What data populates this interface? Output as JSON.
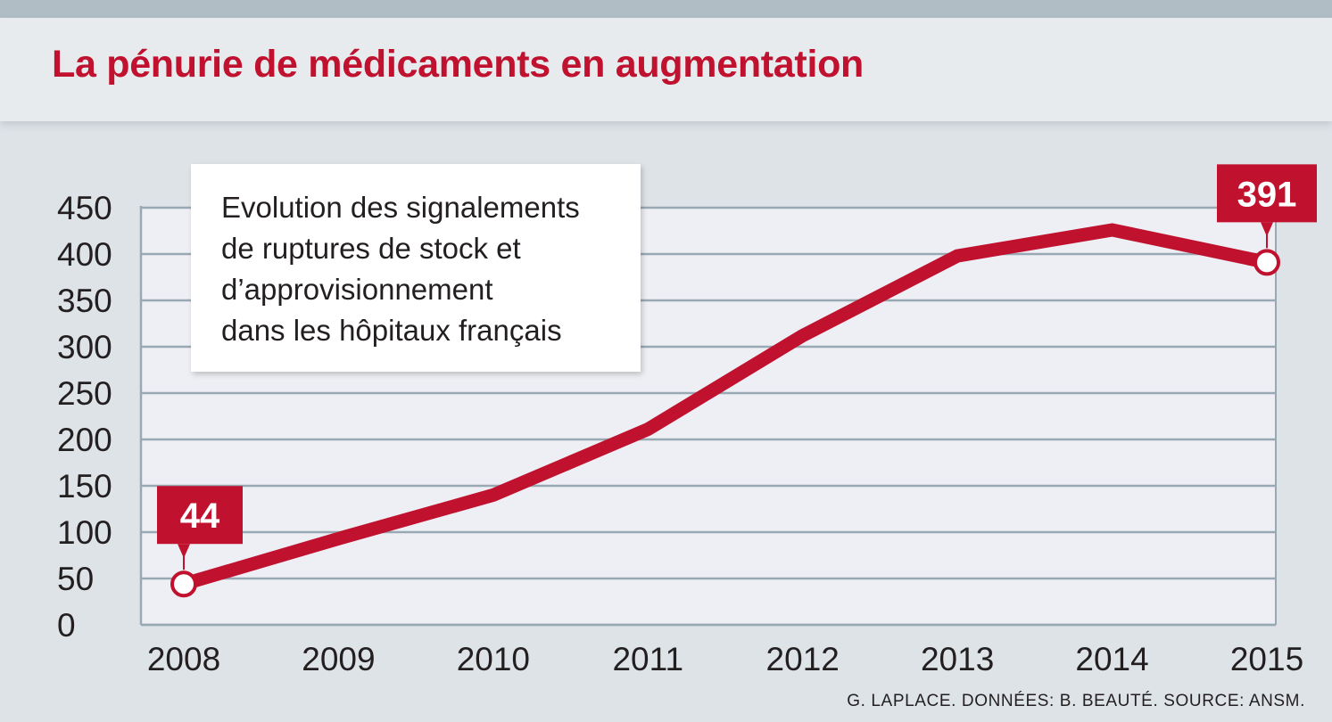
{
  "title": "La pénurie de médicaments en augmentation",
  "legend_lines": [
    "Evolution des signalements",
    "de ruptures de stock et",
    "d’approvisionnement",
    "dans les hôpitaux français"
  ],
  "source": "G. LAPLACE. DONNÉES: B. BEAUTÉ. SOURCE: ANSM.",
  "colors": {
    "accent": "#c0122f",
    "plot_bg": "#eeeff4",
    "grid": "#99a9b3"
  },
  "chart_data": {
    "type": "line",
    "title": "La pénurie de médicaments en augmentation",
    "subtitle": "Evolution des signalements de ruptures de stock et d’approvisionnement dans les hôpitaux français",
    "categories": [
      "2008",
      "2009",
      "2010",
      "2011",
      "2012",
      "2013",
      "2014",
      "2015"
    ],
    "series": [
      {
        "name": "Signalements",
        "values": [
          44,
          93,
          140,
          211,
          312,
          398,
          426,
          391
        ]
      }
    ],
    "ylim": [
      0,
      450
    ],
    "yticks": [
      0,
      50,
      100,
      150,
      200,
      250,
      300,
      350,
      400,
      450
    ],
    "grid": true,
    "xlabel": "",
    "ylabel": "",
    "annotations": [
      {
        "category": "2008",
        "label": "44"
      },
      {
        "category": "2015",
        "label": "391"
      }
    ]
  }
}
